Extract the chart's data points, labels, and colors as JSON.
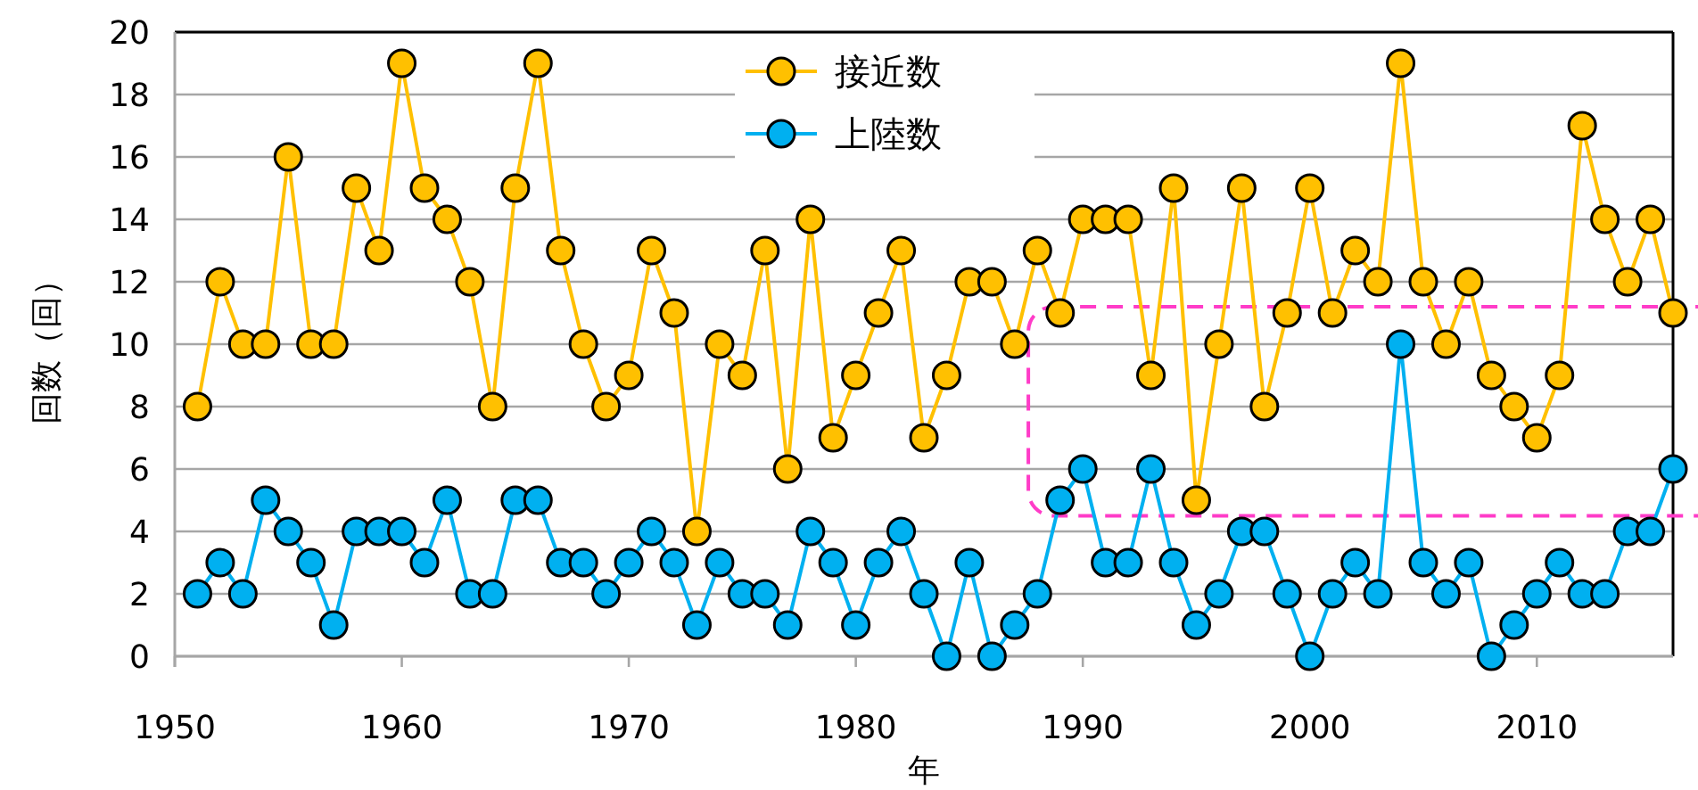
{
  "chart_data": {
    "type": "line",
    "xlabel": "年",
    "ylabel": "回数（回）",
    "x": [
      1951,
      1952,
      1953,
      1954,
      1955,
      1956,
      1957,
      1958,
      1959,
      1960,
      1961,
      1962,
      1963,
      1964,
      1965,
      1966,
      1967,
      1968,
      1969,
      1970,
      1971,
      1972,
      1973,
      1974,
      1975,
      1976,
      1977,
      1978,
      1979,
      1980,
      1981,
      1982,
      1983,
      1984,
      1985,
      1986,
      1987,
      1988,
      1989,
      1990,
      1991,
      1992,
      1993,
      1994,
      1995,
      1996,
      1997,
      1998,
      1999,
      2000,
      2001,
      2002,
      2003,
      2004,
      2005,
      2006,
      2007,
      2008,
      2009,
      2010,
      2011,
      2012,
      2013,
      2014,
      2015,
      2016
    ],
    "series": [
      {
        "name": "接近数",
        "color": "#ffc000",
        "values": [
          8,
          12,
          10,
          10,
          16,
          10,
          10,
          15,
          13,
          19,
          15,
          14,
          12,
          8,
          15,
          19,
          13,
          10,
          8,
          9,
          13,
          11,
          4,
          10,
          9,
          13,
          6,
          14,
          7,
          9,
          11,
          13,
          7,
          9,
          12,
          12,
          10,
          13,
          11,
          14,
          14,
          14,
          9,
          15,
          5,
          10,
          15,
          8,
          11,
          15,
          11,
          13,
          12,
          19,
          12,
          10,
          12,
          9,
          8,
          7,
          9,
          17,
          14,
          12,
          14,
          11
        ]
      },
      {
        "name": "上陸数",
        "color": "#00b0f0",
        "values": [
          2,
          3,
          2,
          5,
          4,
          3,
          1,
          4,
          4,
          4,
          3,
          5,
          2,
          2,
          5,
          5,
          3,
          3,
          2,
          3,
          4,
          3,
          1,
          3,
          2,
          2,
          1,
          4,
          3,
          1,
          3,
          4,
          2,
          0,
          3,
          0,
          1,
          2,
          5,
          6,
          3,
          3,
          6,
          3,
          1,
          2,
          4,
          4,
          2,
          0,
          2,
          3,
          2,
          10,
          3,
          2,
          3,
          0,
          1,
          2,
          3,
          2,
          2,
          4,
          4,
          6
        ]
      }
    ],
    "xlim": [
      1950,
      2016
    ],
    "xticks": [
      1950,
      1960,
      1970,
      1980,
      1990,
      2000,
      2010
    ],
    "ylim": [
      0,
      20
    ],
    "yticks": [
      0,
      2,
      4,
      6,
      8,
      10,
      12,
      14,
      16,
      18,
      20
    ],
    "grid": "y",
    "legend": "top",
    "marker": "circle",
    "line_style": "solid"
  }
}
